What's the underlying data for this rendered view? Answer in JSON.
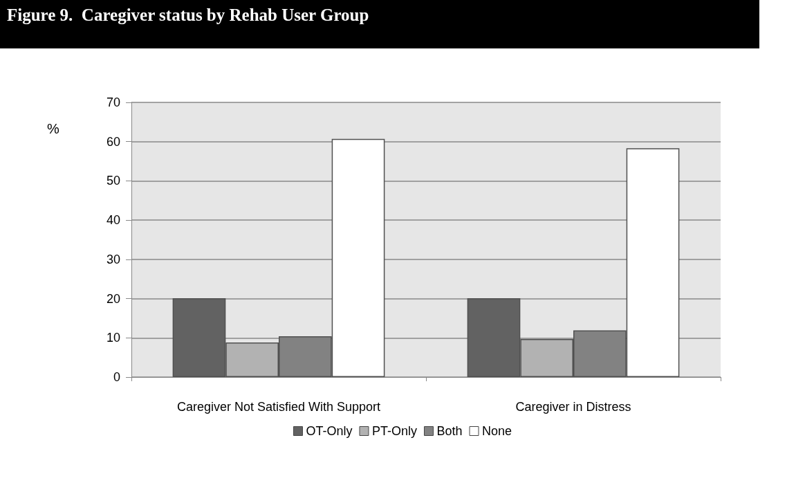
{
  "chart_data": {
    "type": "bar",
    "title": "Figure 9.  Caregiver status by Rehab User Group",
    "ylabel": "%",
    "categories": [
      "Caregiver Not Satisfied With Support",
      "Caregiver in Distress"
    ],
    "series": [
      {
        "name": "OT-Only",
        "color": "#626262",
        "values": [
          20.1,
          20.1
        ]
      },
      {
        "name": "PT-Only",
        "color": "#b2b2b2",
        "values": [
          8.8,
          9.7
        ]
      },
      {
        "name": "Both",
        "color": "#828282",
        "values": [
          10.4,
          11.9
        ]
      },
      {
        "name": "None",
        "color": "#ffffff",
        "values": [
          60.7,
          58.3
        ]
      }
    ],
    "ylim": [
      0,
      70
    ],
    "yticks": [
      0,
      10,
      20,
      30,
      40,
      50,
      60,
      70
    ],
    "grid": "y",
    "legend": "bottom"
  }
}
